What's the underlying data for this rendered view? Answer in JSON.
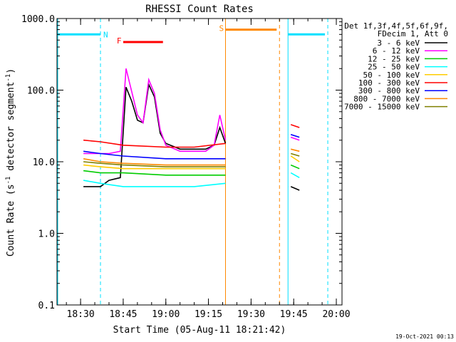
{
  "chart_data": {
    "type": "line",
    "title": "RHESSI Count Rates",
    "xlabel": "Start Time (05-Aug-11 18:21:42)",
    "ylabel": "Count Rate (s",
    "ylabel_sup": "-1",
    "ylabel_tail": " detector segment",
    "ylabel_close": ")",
    "y_scale": "log",
    "ylim": [
      0.1,
      1000.0
    ],
    "xlim": [
      "18:21:42",
      "20:02"
    ],
    "x_ticks": [
      "18:30",
      "18:45",
      "19:00",
      "19:15",
      "19:30",
      "19:45",
      "20:00"
    ],
    "y_ticks": [
      "1000.0",
      "100.0",
      "10.0",
      "1.0",
      "0.1"
    ],
    "legend_header": [
      "Det 1f,3f,4f,5f,6f,9f,",
      "FDecim 1, Att 0"
    ],
    "legend_position": "right",
    "series": [
      {
        "name": "3 - 6 keV",
        "color": "#000000",
        "points": [
          [
            "18:31",
            4.5
          ],
          [
            "18:37",
            4.5
          ],
          [
            "18:40",
            5.5
          ],
          [
            "18:44",
            6.0
          ],
          [
            "18:46",
            110
          ],
          [
            "18:48",
            70
          ],
          [
            "18:50",
            38
          ],
          [
            "18:52",
            35
          ],
          [
            "18:54",
            120
          ],
          [
            "18:56",
            80
          ],
          [
            "18:58",
            25
          ],
          [
            "19:00",
            18
          ],
          [
            "19:05",
            15
          ],
          [
            "19:10",
            15
          ],
          [
            "19:14",
            15
          ],
          [
            "19:17",
            17
          ],
          [
            "19:19",
            30
          ],
          [
            "19:21",
            18
          ],
          [
            "19:44",
            4.5
          ],
          [
            "19:47",
            4.0
          ]
        ]
      },
      {
        "name": "6 - 12 keV",
        "color": "#ff00ff",
        "points": [
          [
            "18:31",
            13
          ],
          [
            "18:37",
            13
          ],
          [
            "18:40",
            13
          ],
          [
            "18:44",
            14
          ],
          [
            "18:46",
            200
          ],
          [
            "18:48",
            95
          ],
          [
            "18:50",
            45
          ],
          [
            "18:52",
            35
          ],
          [
            "18:54",
            140
          ],
          [
            "18:56",
            90
          ],
          [
            "18:58",
            28
          ],
          [
            "19:00",
            17
          ],
          [
            "19:05",
            14
          ],
          [
            "19:10",
            14
          ],
          [
            "19:14",
            14
          ],
          [
            "19:17",
            17
          ],
          [
            "19:19",
            45
          ],
          [
            "19:21",
            20
          ],
          [
            "19:44",
            22
          ],
          [
            "19:47",
            20
          ]
        ]
      },
      {
        "name": "12 - 25 keV",
        "color": "#00cc00",
        "points": [
          [
            "18:31",
            7.5
          ],
          [
            "18:37",
            7.0
          ],
          [
            "18:45",
            7.0
          ],
          [
            "19:00",
            6.5
          ],
          [
            "19:10",
            6.5
          ],
          [
            "19:21",
            6.5
          ],
          [
            "19:44",
            9.0
          ],
          [
            "19:47",
            8.0
          ]
        ]
      },
      {
        "name": "25 - 50 keV",
        "color": "#00ffff",
        "points": [
          [
            "18:31",
            5.5
          ],
          [
            "18:37",
            5.0
          ],
          [
            "18:45",
            4.5
          ],
          [
            "19:00",
            4.5
          ],
          [
            "19:10",
            4.5
          ],
          [
            "19:21",
            5.0
          ],
          [
            "19:44",
            7.0
          ],
          [
            "19:47",
            6.0
          ]
        ]
      },
      {
        "name": "50 - 100 keV",
        "color": "#ffcc00",
        "points": [
          [
            "18:31",
            9.0
          ],
          [
            "18:37",
            8.5
          ],
          [
            "18:45",
            8.0
          ],
          [
            "19:00",
            8.0
          ],
          [
            "19:10",
            8.0
          ],
          [
            "19:21",
            8.0
          ],
          [
            "19:44",
            12
          ],
          [
            "19:47",
            10
          ]
        ]
      },
      {
        "name": "100 - 300 keV",
        "color": "#ff0000",
        "points": [
          [
            "18:31",
            20
          ],
          [
            "18:37",
            19
          ],
          [
            "18:45",
            17
          ],
          [
            "19:00",
            16
          ],
          [
            "19:10",
            16
          ],
          [
            "19:21",
            18
          ],
          [
            "19:44",
            33
          ],
          [
            "19:47",
            30
          ]
        ]
      },
      {
        "name": "300 - 800 keV",
        "color": "#0000ff",
        "points": [
          [
            "18:31",
            14
          ],
          [
            "18:37",
            13
          ],
          [
            "18:45",
            12
          ],
          [
            "19:00",
            11
          ],
          [
            "19:10",
            11
          ],
          [
            "19:21",
            11
          ],
          [
            "19:44",
            24
          ],
          [
            "19:47",
            22
          ]
        ]
      },
      {
        "name": "800 - 7000 keV",
        "color": "#ff8800",
        "points": [
          [
            "18:31",
            11
          ],
          [
            "18:37",
            10
          ],
          [
            "18:45",
            9.5
          ],
          [
            "19:00",
            9.0
          ],
          [
            "19:10",
            9.0
          ],
          [
            "19:21",
            9.0
          ],
          [
            "19:44",
            15
          ],
          [
            "19:47",
            14
          ]
        ]
      },
      {
        "name": "7000 - 15000 keV",
        "color": "#808000",
        "points": [
          [
            "18:31",
            10
          ],
          [
            "18:37",
            9.5
          ],
          [
            "18:45",
            9.0
          ],
          [
            "19:00",
            8.5
          ],
          [
            "19:10",
            8.5
          ],
          [
            "19:21",
            8.5
          ],
          [
            "19:44",
            13
          ],
          [
            "19:47",
            12
          ]
        ]
      }
    ],
    "annotations": [
      {
        "label": "N",
        "color": "#00e0ff",
        "bar": [
          "18:21:42",
          "18:37"
        ],
        "level": 600,
        "line_times": [
          "18:37"
        ]
      },
      {
        "label": "F",
        "color": "#ff0000",
        "bar": [
          "18:45",
          "18:59"
        ],
        "level": 470
      },
      {
        "label": "S",
        "color": "#ff8800",
        "bar": [
          "19:21",
          "19:39"
        ],
        "level": 700,
        "line_times": [
          "19:21",
          "19:40"
        ]
      },
      {
        "label": "",
        "color": "#00e0ff",
        "bar": [
          "19:43",
          "19:56"
        ],
        "level": 600,
        "line_times": [
          "19:43",
          "19:57"
        ]
      }
    ],
    "footer_date": "19-Oct-2021 00:13"
  }
}
